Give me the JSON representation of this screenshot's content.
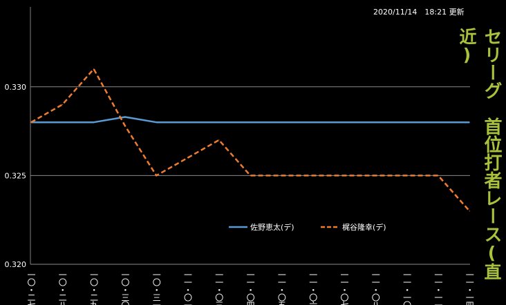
{
  "update_text": "2020/11/14　18:21 更新",
  "side_title": {
    "part1": "セリーグ　首位打者レース",
    "part2": "(直近)"
  },
  "chart_data": {
    "type": "line",
    "title": "セリーグ　首位打者レース(直近)",
    "xlabel": "",
    "ylabel": "",
    "categories": [
      "一〇・二七",
      "一〇・二八",
      "一〇・二九",
      "一〇・三〇",
      "一〇・三一",
      "一一・〇一",
      "一一・〇三",
      "一一・〇四",
      "一一・〇五",
      "一一・〇六",
      "一一・〇七",
      "一一・〇八",
      "一一・一〇",
      "一一・一一",
      "一一・一四"
    ],
    "ylim": [
      0.32,
      0.3345
    ],
    "yticks": [
      0.32,
      0.325,
      0.33
    ],
    "ytick_labels": [
      "0.320",
      "0.325",
      "0.330"
    ],
    "grid": true,
    "legend_position": "bottom-right",
    "series": [
      {
        "name": "佐野恵太(デ)",
        "color": "#5b9bd5",
        "dash": "solid",
        "values": [
          0.328,
          0.328,
          0.328,
          0.3283,
          0.328,
          0.328,
          0.328,
          0.328,
          0.328,
          0.328,
          0.328,
          0.328,
          0.328,
          0.328,
          0.328
        ]
      },
      {
        "name": "梶谷隆幸(デ)",
        "color": "#ed7d31",
        "dash": "dashed",
        "values": [
          0.328,
          0.329,
          0.331,
          0.3278,
          0.325,
          0.326,
          0.327,
          0.325,
          0.325,
          0.325,
          0.325,
          0.325,
          0.325,
          0.325,
          0.323
        ]
      }
    ]
  }
}
